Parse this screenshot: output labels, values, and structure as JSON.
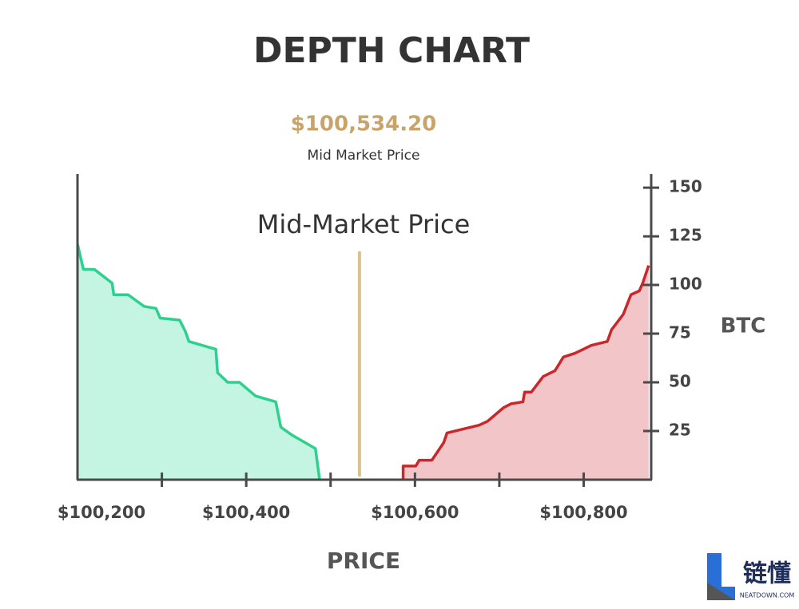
{
  "chart_data": {
    "type": "depth",
    "title": "DEPTH CHART",
    "mid_price": {
      "value": 100534.2,
      "label": "$100,534.20"
    },
    "mid_price_caption": "Mid Market Price",
    "annotation": "Mid-Market Price",
    "xlabel": "PRICE",
    "ylabel": "BTC",
    "xlim": [
      100200,
      100880
    ],
    "xticks": [
      {
        "value": 100200,
        "label": "$100,200"
      },
      {
        "value": 100400,
        "label": "$100,400"
      },
      {
        "value": 100600,
        "label": "$100,600"
      },
      {
        "value": 100800,
        "label": "$100,800"
      }
    ],
    "xminorticks": [
      100300,
      100500,
      100700
    ],
    "ylim": [
      0,
      157
    ],
    "yticks": [
      25,
      50,
      75,
      100,
      125,
      150
    ],
    "series": [
      {
        "side": "bid",
        "color": "#2fd08f",
        "fill": "#c3f5e2",
        "x": [
          100200,
          100207,
          100220,
          100241,
          100243,
          100260,
          100279,
          100293,
          100298,
          100321,
          100328,
          100332,
          100340,
          100364,
          100366,
          100378,
          100392,
          100411,
          100435,
          100441,
          100454,
          100482,
          100487
        ],
        "values": [
          121,
          108,
          108,
          101,
          95,
          95,
          89,
          88,
          83,
          82,
          76,
          71,
          70,
          67,
          55,
          50,
          50,
          43,
          40,
          27,
          23,
          16,
          0
        ]
      },
      {
        "side": "ask",
        "color": "#c8282c",
        "fill": "#f2c6c8",
        "x": [
          100586,
          100586,
          100601,
          100605,
          100620,
          100634,
          100638,
          100676,
          100686,
          100705,
          100714,
          100728,
          100730,
          100738,
          100752,
          100766,
          100776,
          100790,
          100809,
          100828,
          100833,
          100847,
          100856,
          100866,
          100870,
          100877
        ],
        "values": [
          0,
          7,
          7,
          10,
          10,
          19,
          24,
          28,
          30,
          37,
          39,
          40,
          45,
          45,
          53,
          56,
          63,
          65,
          69,
          71,
          77,
          85,
          95,
          97,
          101,
          110
        ]
      }
    ]
  },
  "logo": {
    "text": "链懂",
    "subtext": "NEATDOWN.COM"
  }
}
